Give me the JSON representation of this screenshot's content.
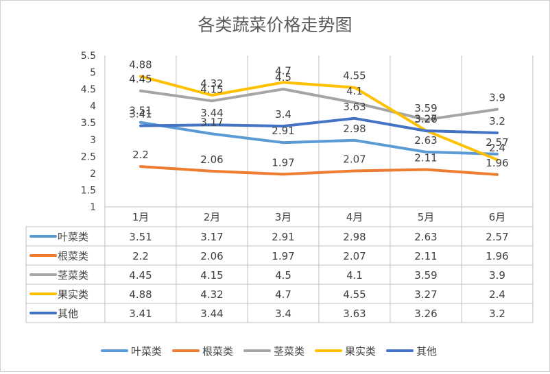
{
  "chart_data": {
    "type": "line",
    "title": "各类蔬菜价格走势图",
    "categories": [
      "1月",
      "2月",
      "3月",
      "4月",
      "5月",
      "6月"
    ],
    "ylim": [
      1,
      5.5
    ],
    "yticks": [
      "1",
      "1.5",
      "2",
      "2.5",
      "3",
      "3.5",
      "4",
      "4.5",
      "5",
      "5.5"
    ],
    "grid": false,
    "legend": "bottom",
    "data_table": true,
    "series": [
      {
        "name": "叶菜类",
        "color": "#5B9BD5",
        "values": [
          3.51,
          3.17,
          2.91,
          2.98,
          2.63,
          2.57
        ],
        "labels": [
          "3.51",
          "3.17",
          "2.91",
          "2.98",
          "2.63",
          "2.57"
        ]
      },
      {
        "name": "根菜类",
        "color": "#ED7D31",
        "values": [
          2.2,
          2.06,
          1.97,
          2.07,
          2.11,
          1.96
        ],
        "labels": [
          "2.2",
          "2.06",
          "1.97",
          "2.07",
          "2.11",
          "1.96"
        ]
      },
      {
        "name": "茎菜类",
        "color": "#A5A5A5",
        "values": [
          4.45,
          4.15,
          4.5,
          4.1,
          3.59,
          3.9
        ],
        "labels": [
          "4.45",
          "4.15",
          "4.5",
          "4.1",
          "3.59",
          "3.9"
        ]
      },
      {
        "name": "果实类",
        "color": "#FFC000",
        "values": [
          4.88,
          4.32,
          4.7,
          4.55,
          3.27,
          2.4
        ],
        "labels": [
          "4.88",
          "4.32",
          "4.7",
          "4.55",
          "3.27",
          "2.4"
        ]
      },
      {
        "name": "其他",
        "color": "#4472C4",
        "values": [
          3.41,
          3.44,
          3.4,
          3.63,
          3.26,
          3.2
        ],
        "labels": [
          "3.41",
          "3.44",
          "3.4",
          "3.63",
          "3.26",
          "3.2"
        ]
      }
    ]
  }
}
